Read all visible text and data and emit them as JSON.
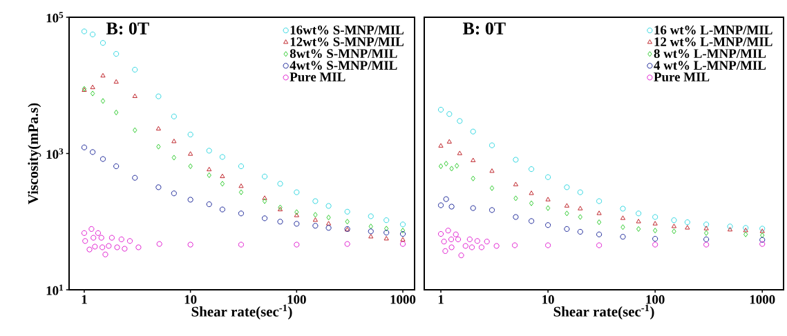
{
  "chart_data": [
    {
      "type": "scatter",
      "log": "xy",
      "xlabel": "Shear rate(sec$^{-1}$)",
      "ylabel": "Viscosity(mPa.s)",
      "annotations": [
        "B: 0T"
      ],
      "legend": "top right",
      "xlim": [
        0.72,
        1290
      ],
      "ylim": [
        10,
        100000
      ],
      "xticks": [
        1,
        10,
        100,
        1000
      ],
      "yticks": [
        {
          "value": 10,
          "label": "10$^{1}$"
        },
        {
          "value": 1000,
          "label": "10$^{3}$"
        },
        {
          "value": 100000,
          "label": "10$^{5}$"
        }
      ],
      "series": [
        {
          "name": "16wt% S-MNP/MIL",
          "color": "#33d6e0",
          "marker": "circle",
          "x": [
            1,
            1.2,
            1.5,
            2,
            3,
            5,
            7,
            10,
            15,
            20,
            30,
            50,
            70,
            100,
            150,
            200,
            300,
            500,
            700,
            1000
          ],
          "values": [
            62000,
            56000,
            42000,
            29000,
            17000,
            6900,
            3500,
            1900,
            1100,
            890,
            650,
            460,
            360,
            270,
            200,
            170,
            140,
            120,
            105,
            91
          ]
        },
        {
          "name": "12wt% S-MNP/MIL",
          "color": "#c0272d",
          "marker": "triangle",
          "x": [
            1,
            1.2,
            1.5,
            2,
            3,
            5,
            7,
            10,
            15,
            20,
            30,
            50,
            70,
            100,
            150,
            200,
            300,
            500,
            700,
            1000
          ],
          "values": [
            8500,
            9300,
            13800,
            11200,
            6900,
            2300,
            1500,
            980,
            580,
            460,
            330,
            220,
            150,
            123,
            105,
            93,
            76,
            60,
            56,
            54
          ]
        },
        {
          "name": "8wt% S-MNP/MIL",
          "color": "#33cc33",
          "marker": "diamond",
          "x": [
            1,
            1.2,
            1.5,
            2,
            3,
            5,
            7,
            10,
            15,
            20,
            30,
            50,
            70,
            100,
            150,
            200,
            300,
            500,
            700,
            1000
          ],
          "values": [
            8900,
            7600,
            5900,
            4000,
            2200,
            1260,
            870,
            650,
            480,
            360,
            270,
            200,
            162,
            138,
            126,
            115,
            100,
            85,
            79,
            74
          ]
        },
        {
          "name": "4wt% S-MNP/MIL",
          "color": "#1f2a9a",
          "marker": "circle",
          "x": [
            1,
            1.2,
            1.5,
            2,
            3,
            5,
            7,
            10,
            15,
            20,
            30,
            50,
            70,
            100,
            150,
            200,
            300,
            500,
            700,
            1000
          ],
          "values": [
            1230,
            1050,
            830,
            650,
            440,
            320,
            260,
            210,
            180,
            151,
            132,
            112,
            100,
            93,
            87,
            81,
            78,
            72,
            69,
            66
          ]
        },
        {
          "name": "Pure MIL",
          "color": "#e020d0",
          "marker": "circle",
          "x": [
            1,
            1.02,
            1.12,
            1.17,
            1.22,
            1.26,
            1.35,
            1.45,
            1.48,
            1.58,
            1.7,
            1.82,
            2.04,
            2.24,
            2.4,
            2.69,
            3.24,
            5.1,
            10,
            30,
            100,
            300,
            1000
          ],
          "values": [
            68,
            52,
            39,
            78,
            58,
            43,
            68,
            58,
            42,
            33,
            44,
            58,
            42,
            55,
            40,
            52,
            42,
            47,
            46,
            46,
            46,
            47,
            47
          ]
        }
      ]
    },
    {
      "type": "scatter",
      "log": "xy",
      "xlabel": "Shear rate(sec$^{-1}$)",
      "annotations": [
        "B: 0T"
      ],
      "legend": "top right",
      "tick_labels": "x",
      "xlim": [
        0.7,
        1580
      ],
      "ylim": [
        10,
        100000
      ],
      "xticks": [
        1,
        10,
        100,
        1000
      ],
      "series": [
        {
          "name": "16 wt% L-MNP/MIL",
          "color": "#33d6e0",
          "marker": "circle",
          "x": [
            1,
            1.2,
            1.5,
            2,
            3,
            5,
            7,
            10,
            15,
            20,
            30,
            50,
            70,
            100,
            150,
            200,
            300,
            500,
            700,
            1000
          ],
          "values": [
            4400,
            3800,
            3000,
            2100,
            1320,
            810,
            590,
            450,
            320,
            270,
            200,
            155,
            132,
            117,
            105,
            98,
            91,
            85,
            81,
            79
          ]
        },
        {
          "name": "12 wt% L-MNP/MIL",
          "color": "#c0272d",
          "marker": "triangle",
          "x": [
            1,
            1.2,
            1.5,
            2,
            3,
            5,
            7,
            10,
            15,
            20,
            30,
            50,
            70,
            100,
            150,
            200,
            300,
            500,
            700,
            1000
          ],
          "values": [
            1290,
            1480,
            1000,
            790,
            550,
            350,
            260,
            210,
            170,
            155,
            132,
            112,
            100,
            93,
            85,
            81,
            79,
            76,
            74,
            72
          ]
        },
        {
          "name": "8 wt% L-MNP/MIL",
          "color": "#33cc33",
          "marker": "diamond",
          "x": [
            1,
            1.12,
            1.26,
            1.41,
            2,
            3,
            5,
            7,
            10,
            15,
            20,
            30,
            50,
            70,
            100,
            150,
            300,
            700,
            1000
          ],
          "values": [
            650,
            710,
            600,
            660,
            430,
            310,
            220,
            186,
            158,
            132,
            117,
            98,
            83,
            78,
            74,
            72,
            68,
            65,
            63
          ]
        },
        {
          "name": "4 wt% L-MNP/MIL",
          "color": "#1f2a9a",
          "marker": "circle",
          "x": [
            1,
            1.12,
            1.26,
            2,
            3,
            5,
            7,
            10,
            15,
            20,
            30,
            50,
            100,
            300,
            1000
          ],
          "values": [
            174,
            214,
            166,
            158,
            148,
            117,
            102,
            89,
            78,
            71,
            65,
            60,
            56,
            55,
            54
          ]
        },
        {
          "name": "Pure MIL",
          "color": "#e020d0",
          "marker": "circle",
          "x": [
            1,
            1.07,
            1.1,
            1.17,
            1.25,
            1.26,
            1.38,
            1.45,
            1.55,
            1.7,
            1.86,
            1.95,
            2.19,
            2.4,
            2.69,
            3.31,
            4.9,
            10,
            30,
            100,
            300,
            1000
          ],
          "values": [
            66,
            51,
            37,
            74,
            55,
            42,
            65,
            55,
            32,
            44,
            55,
            42,
            52,
            42,
            51,
            44,
            45,
            45,
            45,
            46,
            46,
            47
          ]
        }
      ]
    }
  ]
}
